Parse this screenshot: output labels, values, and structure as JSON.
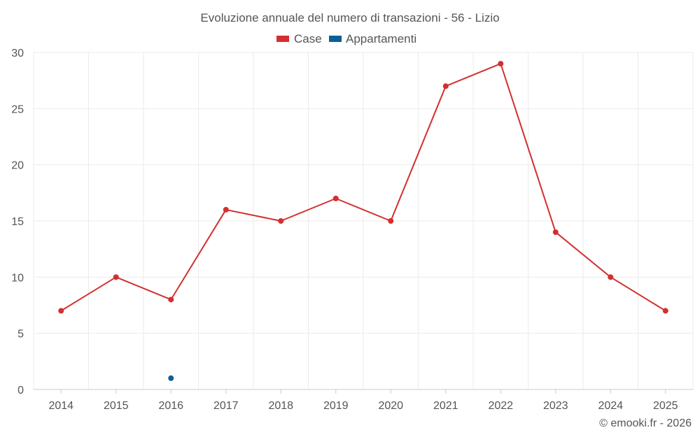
{
  "chart_data": {
    "type": "line",
    "title": "Evoluzione annuale del numero di transazioni - 56 - Lizio",
    "categories": [
      "2014",
      "2015",
      "2016",
      "2017",
      "2018",
      "2019",
      "2020",
      "2021",
      "2022",
      "2023",
      "2024",
      "2025"
    ],
    "series": [
      {
        "name": "Case",
        "color": "#d32f2f",
        "values": [
          7,
          10,
          8,
          16,
          15,
          17,
          15,
          27,
          29,
          14,
          10,
          7
        ]
      },
      {
        "name": "Appartamenti",
        "color": "#0d5f94",
        "values": [
          null,
          null,
          1,
          null,
          null,
          null,
          null,
          null,
          null,
          null,
          null,
          null
        ]
      }
    ],
    "xlabel": "",
    "ylabel": "",
    "ylim": [
      0,
      30
    ],
    "yticks": [
      0,
      5,
      10,
      15,
      20,
      25,
      30
    ],
    "grid": true,
    "legend": "top-center"
  },
  "credit": "© emooki.fr - 2026"
}
